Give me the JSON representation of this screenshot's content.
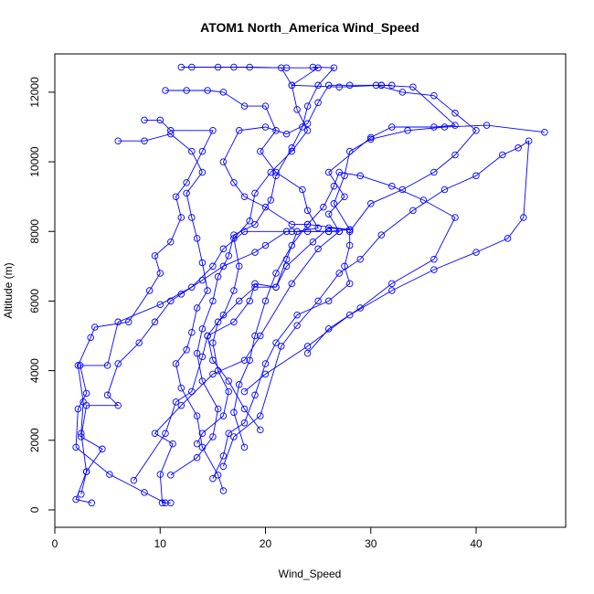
{
  "chart_data": {
    "type": "line",
    "title": "ATOM1 North_America Wind_Speed",
    "xlabel": "Wind_Speed",
    "ylabel": "Altitude (m)",
    "xlim": [
      0,
      48.5
    ],
    "ylim": [
      -500,
      13100
    ],
    "xticks": [
      0,
      10,
      20,
      30,
      40
    ],
    "yticks": [
      0,
      2000,
      4000,
      6000,
      8000,
      10000,
      12000
    ],
    "grid": false,
    "legend": "none",
    "marker": "open-circle",
    "series_color": "#0000ff",
    "series": [
      {
        "points": [
          [
            11.0,
            200
          ],
          [
            10.2,
            200
          ],
          [
            10.0,
            1020
          ],
          [
            11.2,
            1900
          ],
          [
            9.5,
            2200
          ],
          [
            12.0,
            3000
          ],
          [
            15.0,
            3900
          ],
          [
            18.0,
            4300
          ],
          [
            19.5,
            5000
          ],
          [
            22.5,
            6500
          ],
          [
            25.0,
            7500
          ],
          [
            27.0,
            8000
          ],
          [
            26.0,
            8500
          ],
          [
            27.5,
            9000
          ],
          [
            26.0,
            9700
          ],
          [
            30.0,
            10700
          ],
          [
            32.0,
            11000
          ],
          [
            36.0,
            11000
          ],
          [
            38.0,
            11050
          ],
          [
            34.0,
            12150
          ],
          [
            31.0,
            12200
          ],
          [
            27.0,
            12150
          ],
          [
            22.5,
            12200
          ],
          [
            25.0,
            12700
          ],
          [
            22.0,
            12700
          ],
          [
            17.0,
            12720
          ],
          [
            12.0,
            12720
          ]
        ]
      },
      {
        "points": [
          [
            3.5,
            200
          ],
          [
            2.0,
            300
          ],
          [
            3.0,
            1100
          ],
          [
            2.5,
            2200
          ],
          [
            2.7,
            3100
          ],
          [
            2.2,
            4150
          ],
          [
            3.4,
            4950
          ],
          [
            3.8,
            5250
          ],
          [
            7.0,
            5400
          ],
          [
            9.0,
            6300
          ],
          [
            10.0,
            6800
          ],
          [
            9.5,
            7300
          ],
          [
            11.0,
            7700
          ],
          [
            12.0,
            8400
          ],
          [
            11.5,
            9000
          ],
          [
            12.5,
            9400
          ],
          [
            14.0,
            10300
          ],
          [
            15.0,
            10900
          ],
          [
            11.0,
            10900
          ],
          [
            10.0,
            11200
          ],
          [
            8.5,
            11200
          ]
        ]
      },
      {
        "points": [
          [
            10.5,
            200
          ],
          [
            8.5,
            500
          ],
          [
            5.2,
            1020
          ],
          [
            2.0,
            1800
          ],
          [
            2.2,
            2900
          ],
          [
            3.0,
            3350
          ],
          [
            2.4,
            4150
          ],
          [
            5.0,
            4150
          ],
          [
            6.0,
            5400
          ],
          [
            10.0,
            5900
          ],
          [
            13.0,
            6400
          ],
          [
            15.0,
            7000
          ],
          [
            16.0,
            7500
          ],
          [
            18.0,
            8000
          ],
          [
            22.5,
            8000
          ],
          [
            26.0,
            8000
          ],
          [
            28.0,
            8050
          ],
          [
            24.0,
            8200
          ],
          [
            22.5,
            8200
          ],
          [
            20.0,
            8700
          ],
          [
            18.0,
            9000
          ],
          [
            17.0,
            9400
          ],
          [
            16.0,
            10000
          ],
          [
            17.5,
            10900
          ],
          [
            20.0,
            11000
          ],
          [
            22.0,
            10800
          ],
          [
            24.0,
            11100
          ],
          [
            25.0,
            11700
          ],
          [
            26.0,
            12200
          ],
          [
            28.0,
            12200
          ],
          [
            31.0,
            12200
          ],
          [
            32.0,
            12200
          ]
        ]
      },
      {
        "points": [
          [
            2.5,
            450
          ],
          [
            3.0,
            1100
          ],
          [
            4.5,
            1750
          ],
          [
            2.5,
            2100
          ],
          [
            3.0,
            3000
          ],
          [
            6.0,
            3000
          ],
          [
            5.0,
            3300
          ],
          [
            6.0,
            4200
          ],
          [
            8.0,
            4800
          ],
          [
            9.5,
            5400
          ],
          [
            11.0,
            6000
          ],
          [
            12.0,
            6200
          ],
          [
            14.0,
            6600
          ],
          [
            16.0,
            7000
          ],
          [
            19.0,
            7400
          ],
          [
            20.0,
            7600
          ],
          [
            22.0,
            8000
          ],
          [
            24.0,
            8000
          ],
          [
            26.0,
            8000
          ],
          [
            27.0,
            8000
          ]
        ]
      },
      {
        "points": [
          [
            7.5,
            850
          ],
          [
            10.5,
            2200
          ],
          [
            11.5,
            3100
          ],
          [
            13.0,
            3400
          ],
          [
            14.0,
            4400
          ],
          [
            14.5,
            5000
          ],
          [
            17.0,
            5400
          ],
          [
            18.5,
            6000
          ],
          [
            19.0,
            6500
          ],
          [
            21.0,
            6400
          ],
          [
            22.0,
            7000
          ],
          [
            24.5,
            7700
          ],
          [
            26.0,
            8100
          ],
          [
            28.0,
            8050
          ],
          [
            26.5,
            8800
          ],
          [
            27.5,
            9600
          ],
          [
            28.0,
            10300
          ],
          [
            30.0,
            10650
          ],
          [
            33.5,
            10900
          ],
          [
            37.0,
            11000
          ],
          [
            41.0,
            11050
          ],
          [
            46.5,
            10850
          ]
        ]
      },
      {
        "points": [
          [
            13.5,
            1900
          ],
          [
            14.0,
            2200
          ],
          [
            16.0,
            2700
          ],
          [
            16.5,
            3400
          ],
          [
            15.5,
            4000
          ],
          [
            15.0,
            4800
          ],
          [
            15.5,
            5400
          ],
          [
            17.5,
            6000
          ],
          [
            19.0,
            6400
          ],
          [
            21.0,
            6400
          ],
          [
            22.0,
            7200
          ],
          [
            23.0,
            8000
          ],
          [
            25.0,
            8100
          ],
          [
            24.0,
            8600
          ],
          [
            23.5,
            9200
          ],
          [
            21.0,
            9700
          ],
          [
            19.5,
            10300
          ],
          [
            21.0,
            10900
          ],
          [
            20.0,
            11600
          ],
          [
            18.0,
            11600
          ],
          [
            16.0,
            12000
          ],
          [
            14.5,
            12050
          ],
          [
            12.5,
            12050
          ],
          [
            10.5,
            12050
          ]
        ]
      },
      {
        "points": [
          [
            15.0,
            900
          ],
          [
            16.0,
            1550
          ],
          [
            16.5,
            2200
          ],
          [
            18.0,
            2500
          ],
          [
            19.0,
            3300
          ],
          [
            20.0,
            4200
          ],
          [
            21.0,
            4800
          ],
          [
            23.0,
            5600
          ],
          [
            26.0,
            6000
          ],
          [
            28.0,
            6500
          ],
          [
            27.5,
            7000
          ],
          [
            28.0,
            7600
          ],
          [
            28.0,
            8000
          ],
          [
            30.0,
            8800
          ],
          [
            33.0,
            9200
          ],
          [
            36.0,
            9700
          ],
          [
            38.0,
            10200
          ],
          [
            40.0,
            10900
          ],
          [
            38.0,
            11400
          ],
          [
            36.0,
            11900
          ],
          [
            33.0,
            12000
          ],
          [
            30.5,
            12200
          ]
        ]
      },
      {
        "points": [
          [
            16.0,
            550
          ],
          [
            15.5,
            1000
          ],
          [
            14.0,
            1800
          ],
          [
            13.5,
            2700
          ],
          [
            12.0,
            3500
          ],
          [
            11.5,
            4200
          ],
          [
            12.5,
            4600
          ],
          [
            13.0,
            5100
          ],
          [
            13.5,
            5800
          ],
          [
            14.5,
            6300
          ],
          [
            14.0,
            7100
          ],
          [
            13.5,
            7800
          ],
          [
            13.0,
            8400
          ],
          [
            12.5,
            9100
          ],
          [
            14.0,
            9700
          ],
          [
            13.0,
            10300
          ],
          [
            11.0,
            10800
          ],
          [
            8.5,
            10600
          ],
          [
            6.0,
            10600
          ]
        ]
      },
      {
        "points": [
          [
            19.5,
            2300
          ],
          [
            18.0,
            2900
          ],
          [
            16.5,
            3700
          ],
          [
            15.0,
            4300
          ],
          [
            14.5,
            5000
          ],
          [
            16.0,
            5600
          ],
          [
            17.0,
            6300
          ],
          [
            17.5,
            7000
          ],
          [
            17.0,
            7800
          ],
          [
            18.5,
            8300
          ],
          [
            19.0,
            9100
          ],
          [
            20.5,
            9700
          ],
          [
            22.5,
            10300
          ],
          [
            24.0,
            10900
          ],
          [
            23.0,
            11500
          ],
          [
            22.5,
            12200
          ],
          [
            21.5,
            12700
          ],
          [
            18.5,
            12720
          ],
          [
            15.5,
            12720
          ],
          [
            13.0,
            12720
          ]
        ]
      },
      {
        "points": [
          [
            16.0,
            1250
          ],
          [
            17.0,
            2100
          ],
          [
            19.5,
            2700
          ],
          [
            21.5,
            4700
          ],
          [
            23.0,
            5300
          ],
          [
            25.0,
            6000
          ],
          [
            27.0,
            6800
          ],
          [
            29.0,
            7200
          ],
          [
            31.0,
            7900
          ],
          [
            34.0,
            8600
          ],
          [
            37.0,
            9200
          ],
          [
            40.0,
            9600
          ],
          [
            42.5,
            10200
          ],
          [
            44.0,
            10400
          ],
          [
            45.0,
            10600
          ],
          [
            44.5,
            8400
          ],
          [
            43.0,
            7800
          ],
          [
            40.0,
            7400
          ],
          [
            36.0,
            6900
          ],
          [
            32.0,
            6300
          ],
          [
            28.0,
            5600
          ],
          [
            24.0,
            4700
          ],
          [
            20.0,
            3900
          ],
          [
            18.0,
            3400
          ]
        ]
      },
      {
        "points": [
          [
            18.0,
            1800
          ],
          [
            17.0,
            2800
          ],
          [
            17.5,
            3600
          ],
          [
            18.5,
            4300
          ],
          [
            19.0,
            5000
          ],
          [
            20.0,
            6000
          ],
          [
            21.0,
            6800
          ],
          [
            22.5,
            7600
          ],
          [
            24.0,
            8200
          ],
          [
            25.5,
            8700
          ],
          [
            26.5,
            9300
          ],
          [
            27.0,
            9700
          ],
          [
            29.0,
            9600
          ],
          [
            32.0,
            9300
          ],
          [
            35.0,
            8900
          ],
          [
            38.0,
            8400
          ],
          [
            36.0,
            7200
          ],
          [
            32.0,
            6500
          ],
          [
            29.0,
            5800
          ],
          [
            26.0,
            5200
          ],
          [
            24.0,
            4500
          ]
        ]
      },
      {
        "points": [
          [
            11.0,
            1000
          ],
          [
            13.5,
            1500
          ],
          [
            15.0,
            2100
          ],
          [
            15.5,
            2900
          ],
          [
            14.0,
            3700
          ],
          [
            13.5,
            4500
          ],
          [
            14.0,
            5200
          ],
          [
            15.0,
            6000
          ],
          [
            15.5,
            6700
          ],
          [
            16.5,
            7300
          ],
          [
            17.0,
            7900
          ],
          [
            19.0,
            8200
          ],
          [
            20.5,
            8900
          ],
          [
            21.0,
            9600
          ],
          [
            22.5,
            10400
          ],
          [
            23.5,
            11000
          ],
          [
            24.0,
            11600
          ],
          [
            25.0,
            12200
          ],
          [
            26.5,
            12700
          ],
          [
            24.5,
            12720
          ]
        ]
      }
    ]
  }
}
